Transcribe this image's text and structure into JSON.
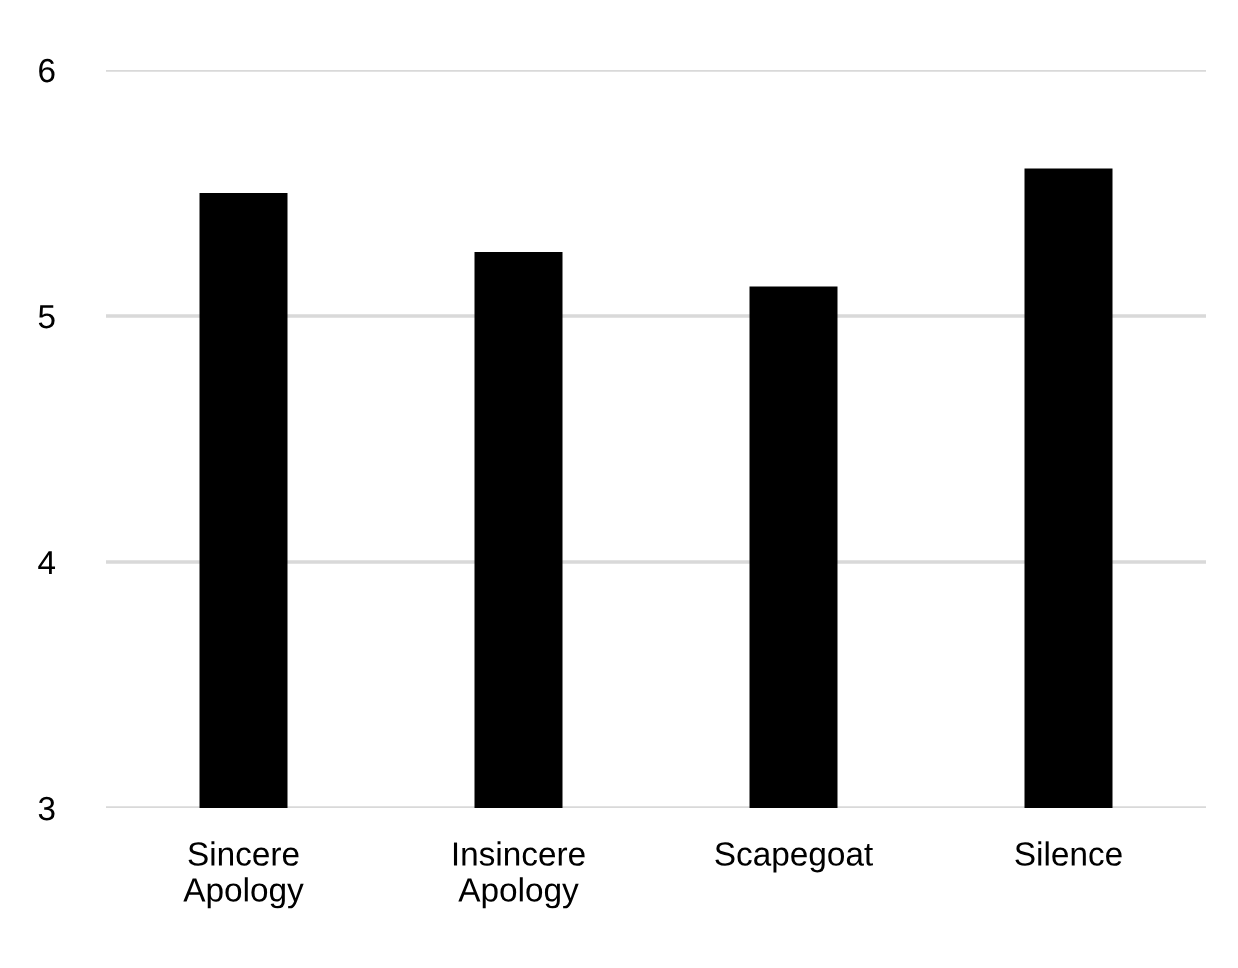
{
  "chart_data": {
    "type": "bar",
    "categories": [
      "Sincere\nApology",
      "Insincere\nApology",
      "Scapegoat",
      "Silence"
    ],
    "values": [
      5.5,
      5.26,
      5.12,
      5.6
    ],
    "color": "#000000",
    "ylim": [
      3,
      6
    ],
    "yticks": [
      3,
      4,
      5,
      6
    ],
    "grid": "y"
  }
}
